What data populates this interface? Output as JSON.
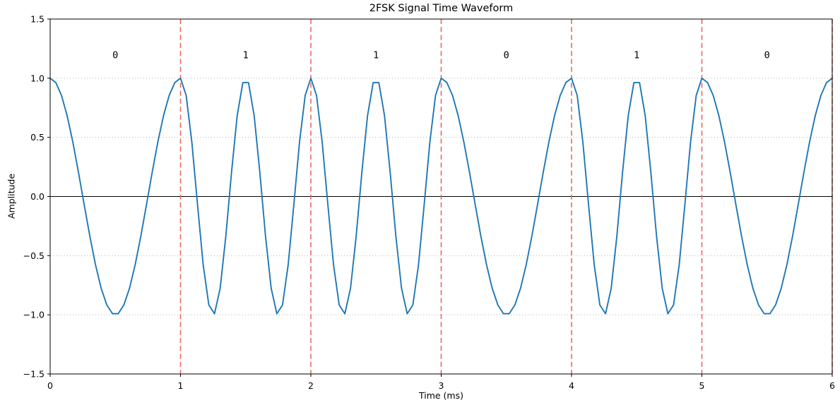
{
  "chart_data": {
    "type": "line",
    "title": "2FSK Signal Time Waveform",
    "xlabel": "Time (ms)",
    "ylabel": "Amplitude",
    "xlim": [
      0,
      6
    ],
    "ylim": [
      -1.5,
      1.5
    ],
    "x_ticks": [
      0,
      1,
      2,
      3,
      4,
      5,
      6
    ],
    "x_tick_labels": [
      "0",
      "1",
      "2",
      "3",
      "4",
      "5",
      "6"
    ],
    "y_ticks": [
      -1.5,
      -1.0,
      -0.5,
      0.0,
      0.5,
      1.0,
      1.5
    ],
    "y_tick_labels": [
      "−1.5",
      "−1.0",
      "−0.5",
      "0.0",
      "0.5",
      "1.0",
      "1.5"
    ],
    "grid": {
      "axis": "y",
      "style": "dotted",
      "lines_at": [
        -1.0,
        -0.5,
        0.5,
        1.0
      ]
    },
    "zero_line": 0.0,
    "bits": [
      0,
      1,
      1,
      0,
      1,
      0
    ],
    "bit_labels": [
      "0",
      "1",
      "1",
      "0",
      "1",
      "0"
    ],
    "bit_duration_ms": 1,
    "freq_bit0_khz": 1,
    "freq_bit1_khz": 2,
    "sample_rate_per_ms": 23,
    "signal_formula": "cos(2*pi*f*t)",
    "amplitude": 1.0,
    "bit_boundaries_ms": [
      1,
      2,
      3,
      4,
      5,
      6
    ],
    "bit_label_y": 1.2,
    "legend": null,
    "colors": {
      "waveform": "#1f77b4",
      "bit_boundary": "#ee6663",
      "grid": "#b5b5b5",
      "zero_line": "#000000",
      "axis": "#000000",
      "text": "#000000"
    }
  }
}
